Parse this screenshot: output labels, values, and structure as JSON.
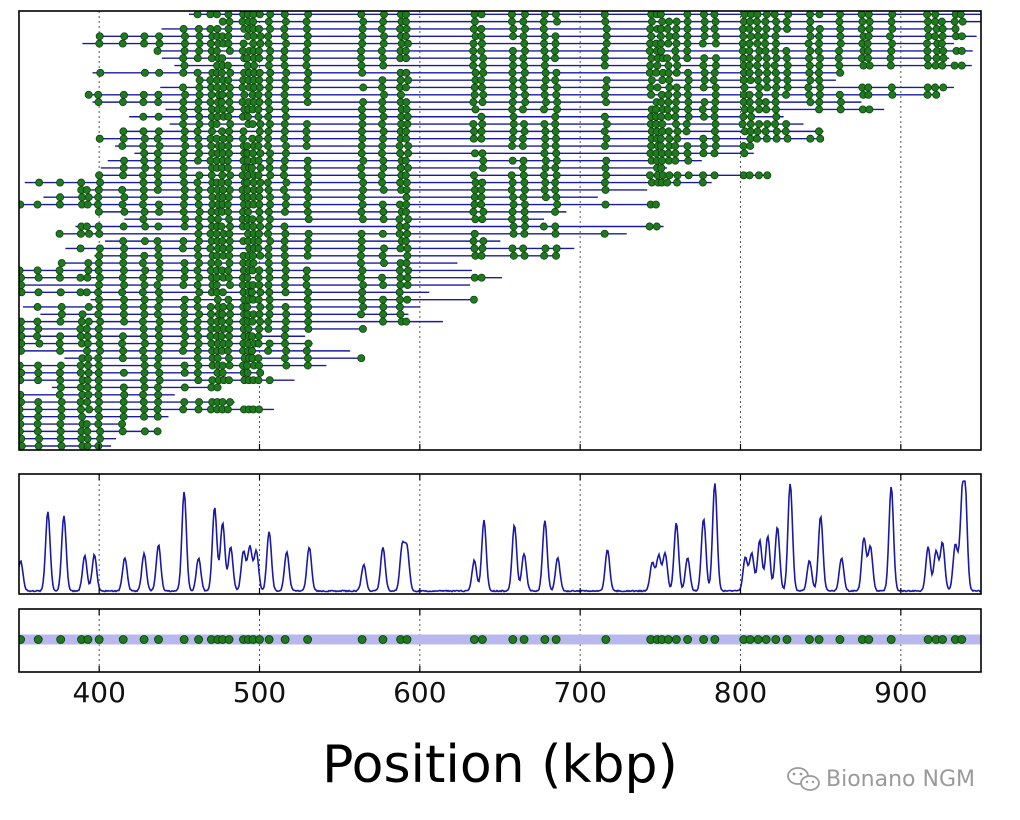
{
  "chart_data": {
    "type": "scatter",
    "title": "",
    "xlabel": "Position (kbp)",
    "xlim": [
      350,
      950
    ],
    "xticks": [
      400,
      500,
      600,
      700,
      800,
      900
    ],
    "grid": "vertical dotted lines at x ticks",
    "colors": {
      "label": "#1f7a1f",
      "molecule": "#1a1aa6",
      "coverage": "#1a1aa6",
      "reference_band": "#b8b8ee"
    },
    "reference_labels": [
      351,
      362,
      376,
      389,
      393,
      400,
      415,
      428,
      437,
      453,
      462,
      470,
      474,
      477,
      481,
      490,
      493,
      496,
      500,
      506,
      516,
      530,
      564,
      577,
      588,
      592,
      634,
      639,
      658,
      665,
      678,
      685,
      716,
      744,
      748,
      751,
      755,
      760,
      767,
      777,
      784,
      802,
      806,
      811,
      816,
      822,
      829,
      843,
      849,
      862,
      876,
      880,
      894,
      917,
      922,
      926,
      934,
      938
    ],
    "coverage_peaks": [
      {
        "x": 351,
        "h": 0.28
      },
      {
        "x": 368,
        "h": 0.72
      },
      {
        "x": 378,
        "h": 0.68
      },
      {
        "x": 391,
        "h": 0.32
      },
      {
        "x": 397,
        "h": 0.33
      },
      {
        "x": 416,
        "h": 0.3
      },
      {
        "x": 428,
        "h": 0.34
      },
      {
        "x": 437,
        "h": 0.42
      },
      {
        "x": 453,
        "h": 0.9
      },
      {
        "x": 462,
        "h": 0.3
      },
      {
        "x": 472,
        "h": 0.76
      },
      {
        "x": 477,
        "h": 0.62
      },
      {
        "x": 482,
        "h": 0.4
      },
      {
        "x": 490,
        "h": 0.36
      },
      {
        "x": 494,
        "h": 0.4
      },
      {
        "x": 498,
        "h": 0.36
      },
      {
        "x": 506,
        "h": 0.54
      },
      {
        "x": 517,
        "h": 0.36
      },
      {
        "x": 531,
        "h": 0.4
      },
      {
        "x": 565,
        "h": 0.24
      },
      {
        "x": 577,
        "h": 0.4
      },
      {
        "x": 589,
        "h": 0.4
      },
      {
        "x": 592,
        "h": 0.38
      },
      {
        "x": 634,
        "h": 0.28
      },
      {
        "x": 640,
        "h": 0.64
      },
      {
        "x": 659,
        "h": 0.6
      },
      {
        "x": 665,
        "h": 0.34
      },
      {
        "x": 678,
        "h": 0.64
      },
      {
        "x": 686,
        "h": 0.3
      },
      {
        "x": 717,
        "h": 0.38
      },
      {
        "x": 745,
        "h": 0.26
      },
      {
        "x": 749,
        "h": 0.32
      },
      {
        "x": 753,
        "h": 0.34
      },
      {
        "x": 760,
        "h": 0.62
      },
      {
        "x": 767,
        "h": 0.3
      },
      {
        "x": 777,
        "h": 0.66
      },
      {
        "x": 784,
        "h": 0.98
      },
      {
        "x": 803,
        "h": 0.3
      },
      {
        "x": 807,
        "h": 0.34
      },
      {
        "x": 812,
        "h": 0.46
      },
      {
        "x": 817,
        "h": 0.5
      },
      {
        "x": 823,
        "h": 0.58
      },
      {
        "x": 831,
        "h": 0.98
      },
      {
        "x": 843,
        "h": 0.28
      },
      {
        "x": 850,
        "h": 0.68
      },
      {
        "x": 863,
        "h": 0.3
      },
      {
        "x": 877,
        "h": 0.48
      },
      {
        "x": 881,
        "h": 0.4
      },
      {
        "x": 894,
        "h": 0.95
      },
      {
        "x": 917,
        "h": 0.4
      },
      {
        "x": 922,
        "h": 0.36
      },
      {
        "x": 926,
        "h": 0.44
      },
      {
        "x": 934,
        "h": 0.42
      },
      {
        "x": 938,
        "h": 0.58
      },
      {
        "x": 940,
        "h": 0.88
      }
    ],
    "molecules": {
      "row_count": 60,
      "band_start": [
        340,
        465
      ],
      "band_end": [
        395,
        955
      ],
      "coverage_jitter": 0.1
    }
  },
  "watermark": {
    "icon": "wechat-icon",
    "text": "Bionano NGM"
  }
}
